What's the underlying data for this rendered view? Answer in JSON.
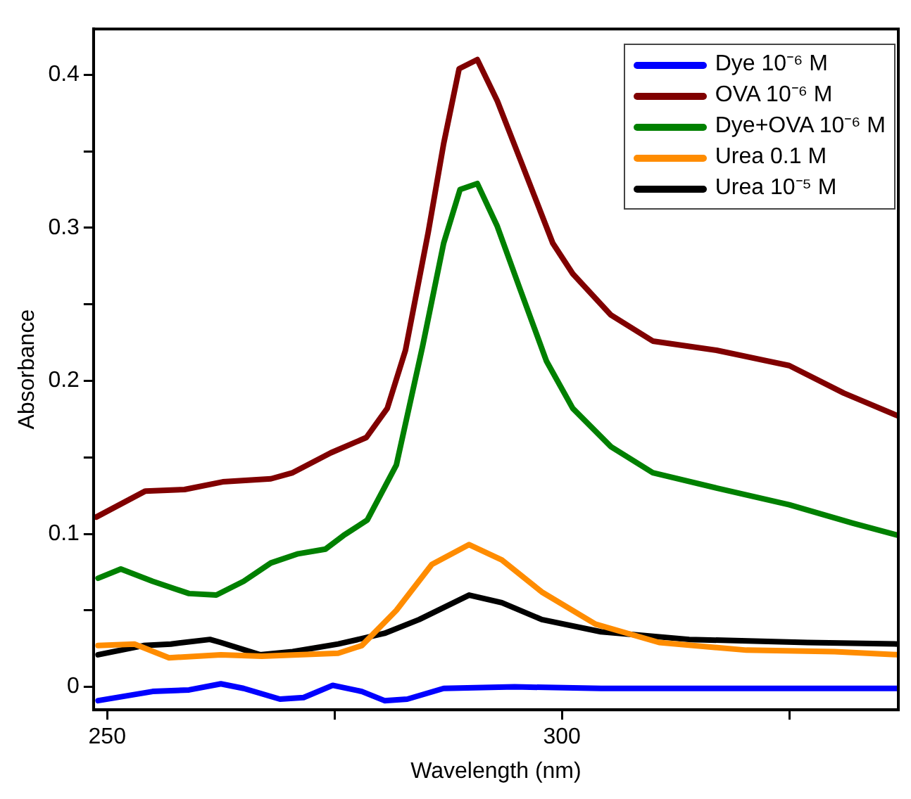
{
  "chart_data": {
    "type": "line",
    "xlabel": "Wavelength (nm)",
    "ylabel": "Absorbance",
    "xlim": [
      248.5,
      337
    ],
    "ylim": [
      -0.015,
      0.43
    ],
    "xticks": [
      250,
      {
        "value": 275,
        "label": null
      },
      300,
      {
        "value": 325,
        "label": null
      }
    ],
    "yticks": [
      0,
      {
        "value": 0.05,
        "label": null
      },
      0.1,
      {
        "value": 0.15,
        "label": null
      },
      0.2,
      {
        "value": 0.25,
        "label": null
      },
      0.3,
      {
        "value": 0.35,
        "label": null
      },
      0.4
    ],
    "legend": "top right",
    "marker": "none",
    "line_style": "solid",
    "series": [
      {
        "name": "Dye 10⁻⁶ M",
        "color": "#0000ff",
        "x": [
          249,
          255,
          259,
          262.5,
          265,
          269,
          271.6,
          274.8,
          278,
          280.5,
          283,
          287,
          294.8,
          304.3,
          337
        ],
        "values": [
          -0.009,
          -0.003,
          -0.002,
          0.002,
          -0.001,
          -0.008,
          -0.007,
          0.001,
          -0.003,
          -0.009,
          -0.008,
          -0.001,
          0,
          -0.001,
          -0.001
        ]
      },
      {
        "name": "OVA 10⁻⁶ M",
        "color": "#800000",
        "x": [
          248.8,
          254.2,
          258.5,
          262.7,
          268,
          270.4,
          274.6,
          278.5,
          280.8,
          282.8,
          285.3,
          287,
          288.7,
          290.7,
          292.9,
          295.4,
          299,
          301.2,
          305.4,
          310,
          317,
          325,
          331,
          337
        ],
        "values": [
          0.111,
          0.128,
          0.129,
          0.134,
          0.136,
          0.14,
          0.153,
          0.163,
          0.182,
          0.22,
          0.297,
          0.355,
          0.404,
          0.41,
          0.383,
          0.345,
          0.29,
          0.27,
          0.243,
          0.226,
          0.22,
          0.21,
          0.192,
          0.177
        ]
      },
      {
        "name": "Dye+OVA 10⁻⁶ M",
        "color": "#008000",
        "x": [
          249,
          251.5,
          255,
          259,
          262,
          265,
          268,
          271,
          274,
          276,
          278.6,
          281.8,
          284.7,
          287,
          288.8,
          290.7,
          292.9,
          295.4,
          298.3,
          301.2,
          305.4,
          310,
          317,
          325,
          332,
          337
        ],
        "values": [
          0.071,
          0.077,
          0.069,
          0.061,
          0.06,
          0.069,
          0.081,
          0.087,
          0.09,
          0.099,
          0.109,
          0.145,
          0.223,
          0.29,
          0.325,
          0.329,
          0.301,
          0.26,
          0.213,
          0.182,
          0.157,
          0.14,
          0.13,
          0.119,
          0.107,
          0.099
        ]
      },
      {
        "name": "Urea 0.1 M",
        "color": "#ff8c00",
        "x": [
          249,
          253,
          256.8,
          262.5,
          267,
          275.4,
          278,
          281.8,
          285.7,
          289.8,
          293.4,
          297.8,
          303.7,
          310.7,
          320.3,
          330,
          337
        ],
        "values": [
          0.027,
          0.028,
          0.019,
          0.021,
          0.02,
          0.022,
          0.027,
          0.05,
          0.08,
          0.093,
          0.083,
          0.062,
          0.041,
          0.029,
          0.024,
          0.023,
          0.021
        ]
      },
      {
        "name": "Urea 10⁻⁵ M",
        "color": "#000000",
        "x": [
          249,
          254,
          257,
          261.3,
          262.5,
          266.8,
          270.4,
          275.4,
          280.5,
          284.3,
          289.8,
          293.4,
          297.8,
          304.3,
          314,
          327,
          337
        ],
        "values": [
          0.021,
          0.027,
          0.028,
          0.031,
          0.029,
          0.021,
          0.023,
          0.028,
          0.035,
          0.044,
          0.06,
          0.055,
          0.044,
          0.036,
          0.031,
          0.029,
          0.028
        ]
      }
    ]
  }
}
